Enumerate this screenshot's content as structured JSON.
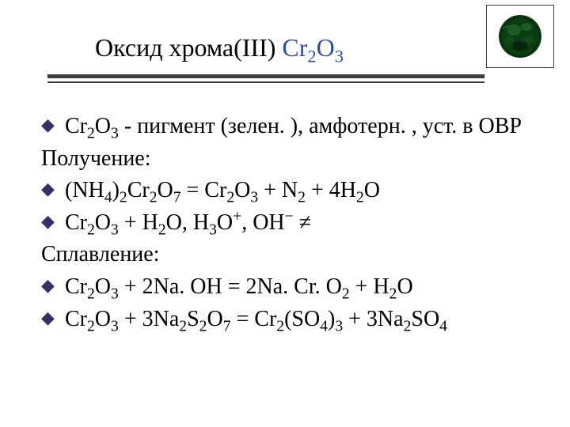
{
  "title": {
    "text_prefix": "Оксид хрома(III) ",
    "formula_html": "Cr<sub>2</sub>O<sub>3</sub>",
    "formula_color": "#2f4da0",
    "fontsize": 32
  },
  "crystal_image": {
    "border_color": "#3f3f3f",
    "fill_colors": [
      "#0b3d12",
      "#1d5b25",
      "#134719",
      "#06260a"
    ],
    "background": "#ffffff"
  },
  "divider": {
    "thick_color": "#3d3d3d",
    "thick_height": 5,
    "thin_color": "#3d3d3d",
    "thin_height": 2
  },
  "content": {
    "fontsize": 28,
    "bullet_color": "#372f6a",
    "text_color": "#000000",
    "lines": [
      {
        "type": "bullet",
        "html": "Cr<sub>2</sub>O<sub>3</sub> - пигмент (зелен. ), амфотерн. , уст. в ОВР"
      },
      {
        "type": "plain",
        "html": "Получение:"
      },
      {
        "type": "bullet",
        "html": "(NH<sub>4</sub>)<sub>2</sub>Cr<sub>2</sub>O<sub>7</sub> = Cr<sub>2</sub>O<sub>3</sub> + N<sub>2</sub> + 4H<sub>2</sub>O"
      },
      {
        "type": "bullet",
        "html": "Cr<sub>2</sub>O<sub>3</sub> + H<sub>2</sub>O, H<sub>3</sub>O<sup>+</sup>, OH<sup>&minus;</sup> &ne;"
      },
      {
        "type": "plain",
        "html": "Сплавление:"
      },
      {
        "type": "bullet",
        "html": "Cr<sub>2</sub>O<sub>3</sub> + 2Na. OH = 2Na. Cr. O<sub>2</sub> + H<sub>2</sub>O"
      },
      {
        "type": "bullet",
        "html": "Cr<sub>2</sub>O<sub>3</sub> + 3Na<sub>2</sub>S<sub>2</sub>O<sub>7</sub> = Cr<sub>2</sub>(SO<sub>4</sub>)<sub>3</sub> + 3Na<sub>2</sub>SO<sub>4</sub>"
      }
    ]
  }
}
